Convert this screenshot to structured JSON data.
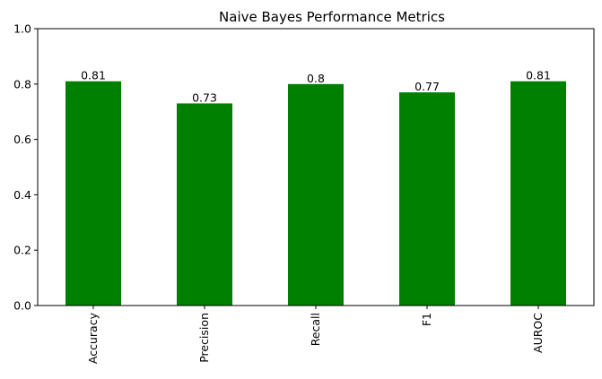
{
  "chart_data": {
    "type": "bar",
    "title": "Naive Bayes Performance Metrics",
    "xlabel": "",
    "ylabel": "",
    "categories": [
      "Accuracy",
      "Precision",
      "Recall",
      "F1",
      "AUROC"
    ],
    "values": [
      0.81,
      0.73,
      0.8,
      0.77,
      0.81
    ],
    "data_labels": [
      "0.81",
      "0.73",
      "0.8",
      "0.77",
      "0.81"
    ],
    "ylim": [
      0,
      1
    ],
    "yticks": [
      0.0,
      0.2,
      0.4,
      0.6,
      0.8,
      1.0
    ],
    "ytick_labels": [
      "0.0",
      "0.2",
      "0.4",
      "0.6",
      "0.8",
      "1.0"
    ],
    "x_tick_rotation": "vertical",
    "grid": false,
    "legend": "none",
    "bar_color": "#008000"
  }
}
